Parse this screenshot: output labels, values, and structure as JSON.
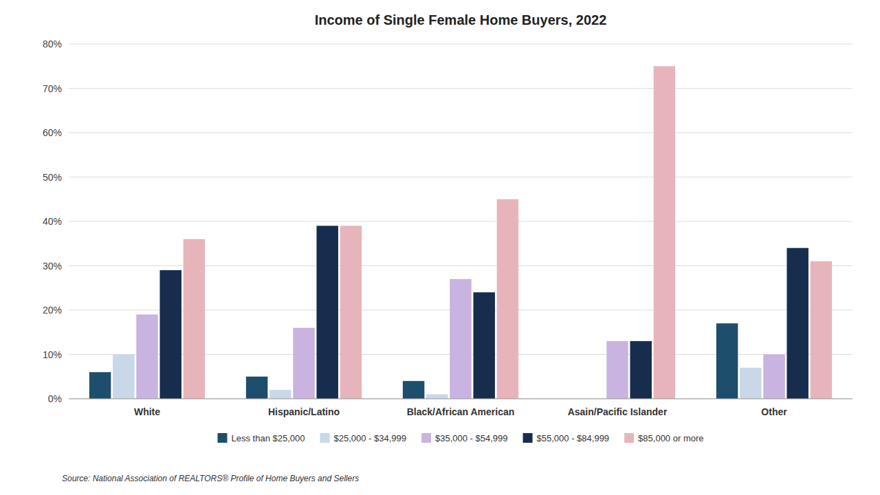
{
  "chart_data": {
    "type": "bar",
    "title": "Income of Single Female Home Buyers, 2022",
    "categories": [
      "White",
      "Hispanic/Latino",
      "Black/African American",
      "Asain/Pacific Islander",
      "Other"
    ],
    "series": [
      {
        "name": "Less than $25,000",
        "color": "#1d4e6b",
        "values": [
          6,
          5,
          4,
          0,
          17
        ]
      },
      {
        "name": "$25,000 - $34,999",
        "color": "#c8d8e8",
        "values": [
          10,
          2,
          1,
          0,
          7
        ]
      },
      {
        "name": "$35,000 - $54,999",
        "color": "#c9b3e0",
        "values": [
          19,
          16,
          27,
          13,
          10
        ]
      },
      {
        "name": "$55,000 - $84,999",
        "color": "#162d4e",
        "values": [
          29,
          39,
          24,
          13,
          34
        ]
      },
      {
        "name": "$85,000 or more",
        "color": "#e8b4bb",
        "values": [
          36,
          39,
          45,
          75,
          31
        ]
      }
    ],
    "ylim": [
      0,
      80
    ],
    "yticks": [
      {
        "value": 0,
        "label": "0%"
      },
      {
        "value": 10,
        "label": "10%"
      },
      {
        "value": 20,
        "label": "20%"
      },
      {
        "value": 30,
        "label": "30%"
      },
      {
        "value": 40,
        "label": "40%"
      },
      {
        "value": 50,
        "label": "50%"
      },
      {
        "value": 60,
        "label": "60%"
      },
      {
        "value": 70,
        "label": "70%"
      },
      {
        "value": 80,
        "label": "80%"
      }
    ],
    "grid": true,
    "legend": "bottom",
    "annotations": [
      "Source: National Association of REALTORS® Profile of Home Buyers and Sellers"
    ]
  }
}
